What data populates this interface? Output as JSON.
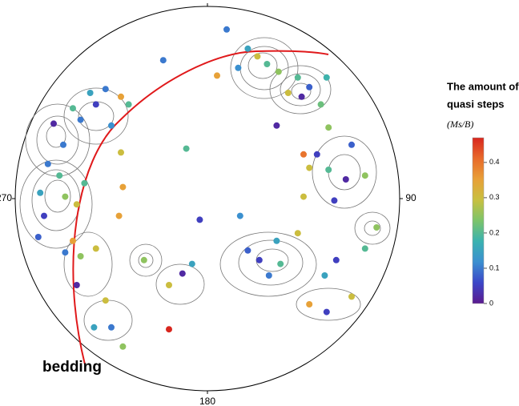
{
  "chart_data": {
    "type": "stereonet",
    "angle_ticks": [
      0,
      90,
      180,
      270
    ],
    "xlim": [
      -1,
      1
    ],
    "ylim": [
      -1,
      1
    ],
    "annotation": "bedding",
    "colorbar_title": [
      "The amount of",
      "quasi steps"
    ],
    "colorbar_unit": "(Ms/B)",
    "clim": [
      0,
      0.47
    ],
    "colorbar_ticks": [
      0,
      0.1,
      0.2,
      0.3,
      0.4
    ],
    "colormap": [
      "#5b1a8e",
      "#3b46c8",
      "#3b8fd0",
      "#3ab2b0",
      "#7cc46a",
      "#c8c040",
      "#e8a038",
      "#e86a2a",
      "#d8261e"
    ],
    "great_circle_color": "#e0191b",
    "x": [
      0.1,
      -0.23,
      0.05,
      0.21,
      0.26,
      0.31,
      0.16,
      0.37,
      0.47,
      0.53,
      0.49,
      0.59,
      0.62,
      0.36,
      0.63,
      0.75,
      0.5,
      0.53,
      0.63,
      0.72,
      0.82,
      0.5,
      0.66,
      0.17,
      0.47,
      0.36,
      0.27,
      0.38,
      0.32,
      0.21,
      0.61,
      0.67,
      0.82,
      0.88,
      0.53,
      0.62,
      0.75,
      -0.04,
      -0.08,
      -0.2,
      -0.13,
      -0.33,
      -0.2,
      -0.46,
      -0.44,
      -0.11,
      -0.45,
      -0.5,
      -0.58,
      -0.66,
      -0.8,
      -0.75,
      -0.83,
      -0.77,
      -0.87,
      -0.74,
      -0.68,
      -0.85,
      -0.88,
      -0.74,
      -0.66,
      -0.58,
      -0.7,
      -0.68,
      -0.53,
      -0.59,
      -0.44,
      -0.5,
      -0.61,
      -0.53,
      -0.45,
      -0.41,
      -0.7,
      -0.64,
      0.42,
      0.57
    ],
    "y": [
      0.88,
      0.72,
      0.64,
      0.78,
      0.74,
      0.7,
      0.68,
      0.66,
      0.63,
      0.58,
      0.53,
      0.49,
      0.63,
      0.38,
      0.37,
      0.28,
      0.23,
      0.16,
      0.15,
      0.1,
      0.12,
      0.01,
      -0.01,
      -0.09,
      -0.18,
      -0.22,
      -0.32,
      -0.34,
      -0.4,
      -0.27,
      -0.4,
      -0.32,
      -0.26,
      -0.15,
      -0.55,
      -0.59,
      -0.51,
      -0.11,
      -0.34,
      -0.45,
      -0.39,
      -0.32,
      -0.68,
      -0.09,
      0.06,
      0.26,
      0.24,
      0.38,
      0.49,
      0.41,
      0.39,
      0.28,
      0.18,
      0.12,
      0.03,
      0.01,
      -0.03,
      -0.09,
      -0.2,
      -0.28,
      -0.3,
      -0.26,
      -0.22,
      -0.45,
      -0.53,
      -0.67,
      -0.77,
      -0.67,
      0.55,
      0.57,
      0.53,
      0.49,
      0.47,
      0.08,
      0.55,
      0.23
    ],
    "values": [
      0.1,
      0.1,
      0.35,
      0.15,
      0.3,
      0.2,
      0.12,
      0.25,
      0.2,
      0.08,
      0.02,
      0.22,
      0.18,
      0.02,
      0.25,
      0.08,
      0.4,
      0.3,
      0.2,
      0.02,
      0.25,
      0.3,
      0.05,
      0.12,
      0.3,
      0.15,
      0.05,
      0.2,
      0.1,
      0.08,
      0.15,
      0.05,
      0.2,
      0.25,
      0.35,
      0.05,
      0.3,
      0.05,
      0.15,
      0.3,
      0.02,
      0.25,
      0.47,
      0.35,
      0.35,
      0.2,
      0.3,
      0.12,
      0.05,
      0.1,
      0.02,
      0.1,
      0.1,
      0.2,
      0.15,
      0.25,
      0.3,
      0.05,
      0.08,
      0.1,
      0.25,
      0.3,
      0.35,
      0.02,
      0.3,
      0.15,
      0.25,
      0.1,
      0.15,
      0.1,
      0.35,
      0.2,
      0.2,
      0.2,
      0.3,
      0.05
    ]
  }
}
